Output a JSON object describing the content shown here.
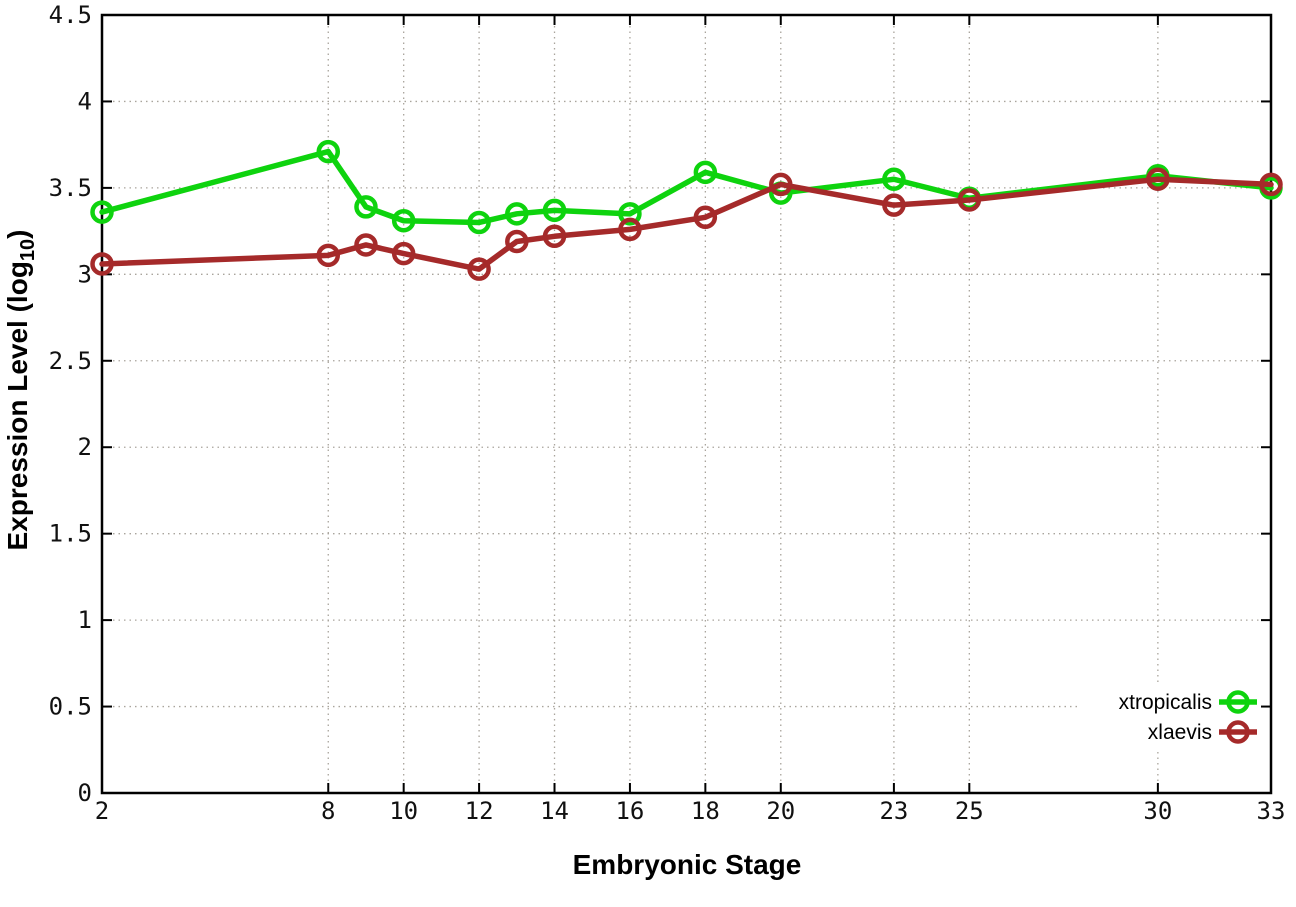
{
  "chart_data": {
    "type": "line",
    "title": "",
    "xlabel": "Embryonic Stage",
    "ylabel": "Expression Level (log10)",
    "ylabel_parts": {
      "main": "Expression Level (log",
      "sub": "10",
      "end": ")"
    },
    "x": [
      2,
      8,
      9,
      10,
      12,
      13,
      14,
      16,
      18,
      20,
      23,
      25,
      30,
      33
    ],
    "series": [
      {
        "name": "xtropicalis",
        "color": "#0ed30e",
        "values": [
          3.36,
          3.71,
          3.39,
          3.31,
          3.3,
          3.35,
          3.37,
          3.35,
          3.59,
          3.47,
          3.55,
          3.44,
          3.57,
          3.5
        ]
      },
      {
        "name": "xlaevis",
        "color": "#a52a2a",
        "values": [
          3.06,
          3.11,
          3.17,
          3.12,
          3.03,
          3.19,
          3.22,
          3.26,
          3.33,
          3.52,
          3.4,
          3.43,
          3.55,
          3.52
        ]
      }
    ],
    "xticks": [
      2,
      8,
      10,
      12,
      14,
      16,
      18,
      20,
      23,
      25,
      30,
      33
    ],
    "yticks": [
      0,
      0.5,
      1,
      1.5,
      2,
      2.5,
      3,
      3.5,
      4,
      4.5
    ],
    "xlim": [
      2,
      33
    ],
    "ylim": [
      0,
      4.5
    ],
    "grid": true,
    "legend_position": "bottom-right",
    "marker": "open-circle"
  },
  "colors": {
    "background": "#ffffff",
    "axis": "#000000",
    "grid": "#a9a49c",
    "tick_text": "#111111"
  }
}
